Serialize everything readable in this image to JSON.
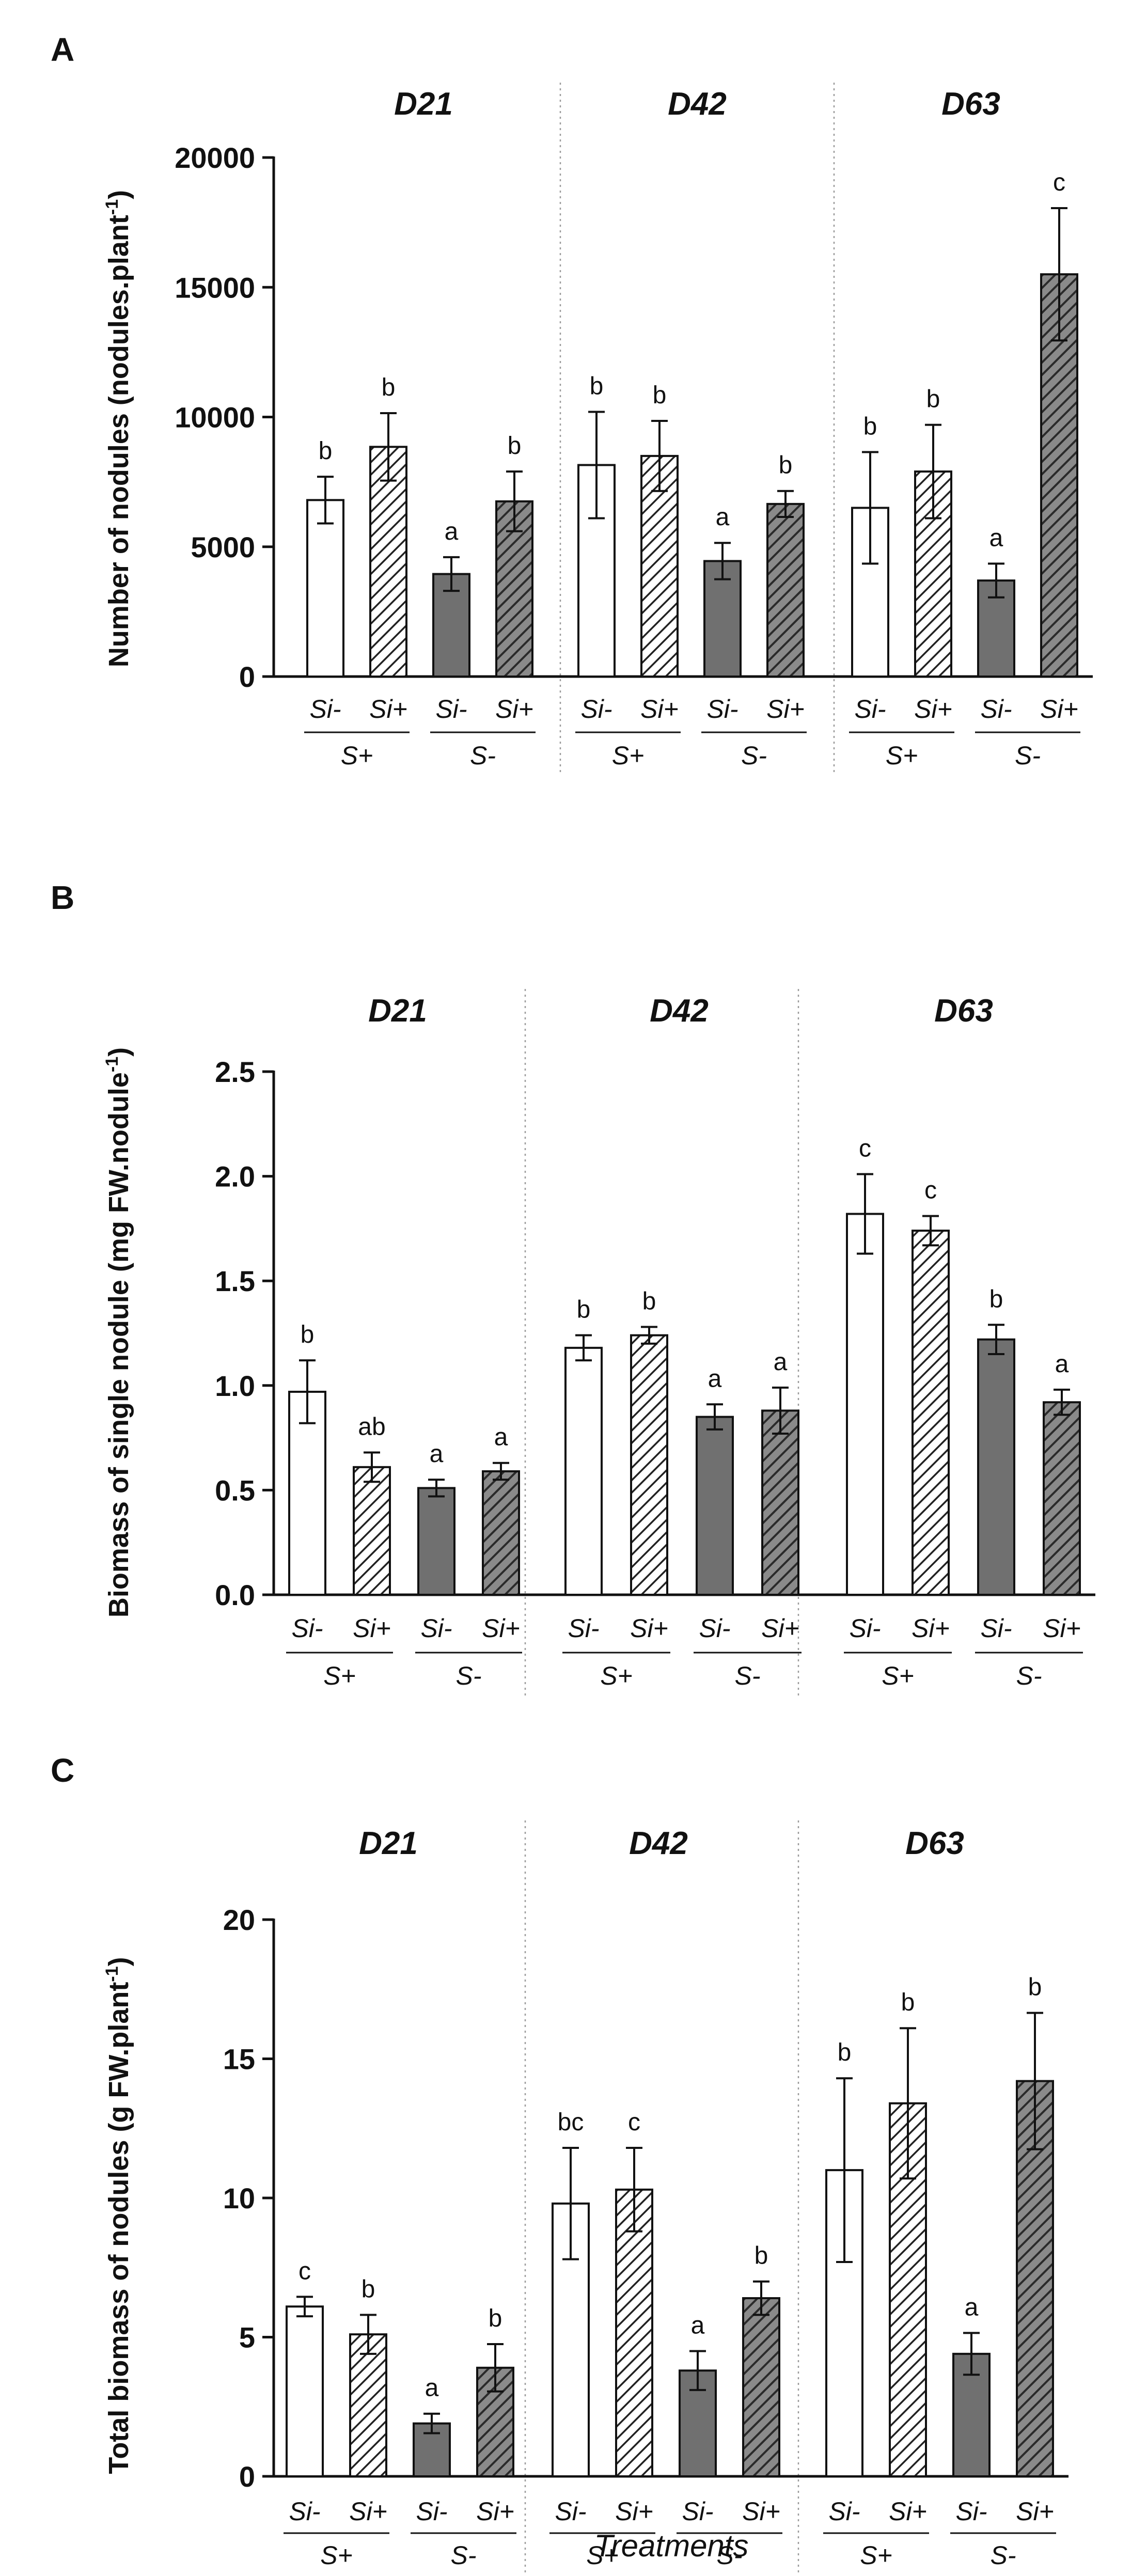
{
  "colors": {
    "solid_bar": "#707070",
    "open_bar": "#ffffff",
    "stroke": "#111111",
    "hatch_on_white": "#222222",
    "hatch_on_grey": "#2a2a2a",
    "hatch_grey_bg": "#8a8a8a",
    "separator": "#9a9a9a"
  },
  "x_axis_title": "Treatments",
  "chart_data": [
    {
      "panel": "A",
      "type": "bar",
      "ylabel": "Number of nodules  (nodules.plant-1)",
      "ylabel_main": "Number of nodules  (nodules.plant",
      "ylabel_sup": "-1",
      "ylabel_end": ")",
      "ylim": [
        0,
        20000
      ],
      "yticks": [
        0,
        5000,
        10000,
        15000,
        20000
      ],
      "ytick_labels": [
        "0",
        "5000",
        "10000",
        "15000",
        "20000"
      ],
      "groups": [
        "D21",
        "D42",
        "D63"
      ],
      "categories": [
        "Si-",
        "Si+",
        "Si-",
        "Si+"
      ],
      "subgroups": [
        "S+",
        "S-"
      ],
      "series": [
        {
          "group": "D21",
          "values": [
            6800,
            8850,
            3950,
            6750
          ],
          "err": [
            900,
            1300,
            650,
            1150
          ],
          "letters": [
            "b",
            "b",
            "a",
            "b"
          ]
        },
        {
          "group": "D42",
          "values": [
            8150,
            8500,
            4450,
            6650
          ],
          "err": [
            2050,
            1350,
            700,
            500
          ],
          "letters": [
            "b",
            "b",
            "a",
            "b"
          ]
        },
        {
          "group": "D63",
          "values": [
            6500,
            7900,
            3700,
            15500
          ],
          "err": [
            2150,
            1800,
            650,
            2550
          ],
          "letters": [
            "b",
            "b",
            "a",
            "c"
          ]
        }
      ]
    },
    {
      "panel": "B",
      "type": "bar",
      "ylabel": "Biomass of single nodule (mg FW.nodule-1)",
      "ylabel_main": "Biomass of single nodule (mg FW.nodule",
      "ylabel_sup": "-1",
      "ylabel_end": ")",
      "ylim": [
        0,
        2.5
      ],
      "yticks": [
        0,
        0.5,
        1.0,
        1.5,
        2.0,
        2.5
      ],
      "ytick_labels": [
        "0.0",
        "0.5",
        "1.0",
        "1.5",
        "2.0",
        "2.5"
      ],
      "groups": [
        "D21",
        "D42",
        "D63"
      ],
      "categories": [
        "Si-",
        "Si+",
        "Si-",
        "Si+"
      ],
      "subgroups": [
        "S+",
        "S-"
      ],
      "series": [
        {
          "group": "D21",
          "values": [
            0.97,
            0.61,
            0.51,
            0.59
          ],
          "err": [
            0.15,
            0.07,
            0.04,
            0.04
          ],
          "letters": [
            "b",
            "ab",
            "a",
            "a"
          ]
        },
        {
          "group": "D42",
          "values": [
            1.18,
            1.24,
            0.85,
            0.88
          ],
          "err": [
            0.06,
            0.04,
            0.06,
            0.11
          ],
          "letters": [
            "b",
            "b",
            "a",
            "a"
          ]
        },
        {
          "group": "D63",
          "values": [
            1.82,
            1.74,
            1.22,
            0.92
          ],
          "err": [
            0.19,
            0.07,
            0.07,
            0.06
          ],
          "letters": [
            "c",
            "c",
            "b",
            "a"
          ]
        }
      ]
    },
    {
      "panel": "C",
      "type": "bar",
      "ylabel": "Total biomass of nodules (g FW.plant-1)",
      "ylabel_main": "Total biomass of nodules (g FW.plant",
      "ylabel_sup": "-1",
      "ylabel_end": ")",
      "ylim": [
        0,
        20
      ],
      "yticks": [
        0,
        5,
        10,
        15,
        20
      ],
      "ytick_labels": [
        "0",
        "5",
        "10",
        "15",
        "20"
      ],
      "groups": [
        "D21",
        "D42",
        "D63"
      ],
      "categories": [
        "Si-",
        "Si+",
        "Si-",
        "Si+"
      ],
      "subgroups": [
        "S+",
        "S-"
      ],
      "series": [
        {
          "group": "D21",
          "values": [
            6.1,
            5.1,
            1.9,
            3.9
          ],
          "err": [
            0.35,
            0.7,
            0.35,
            0.85
          ],
          "letters": [
            "c",
            "b",
            "a",
            "b"
          ]
        },
        {
          "group": "D42",
          "values": [
            9.8,
            10.3,
            3.8,
            6.4
          ],
          "err": [
            2.0,
            1.5,
            0.7,
            0.6
          ],
          "letters": [
            "bc",
            "c",
            "a",
            "b"
          ]
        },
        {
          "group": "D63",
          "values": [
            11.0,
            13.4,
            4.4,
            14.2
          ],
          "err": [
            3.3,
            2.7,
            0.75,
            2.45
          ],
          "letters": [
            "b",
            "b",
            "a",
            "b"
          ]
        }
      ]
    }
  ]
}
